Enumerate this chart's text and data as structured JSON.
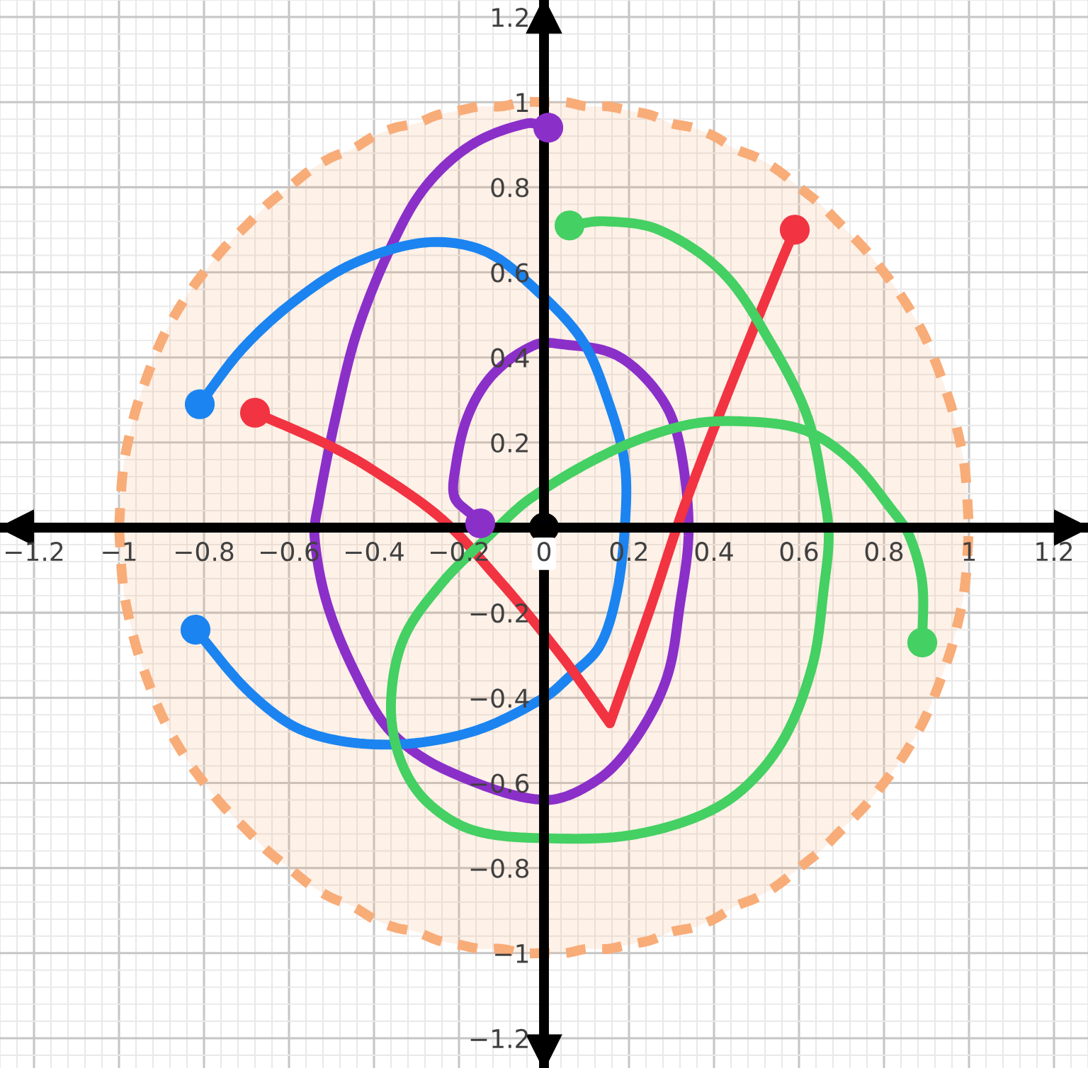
{
  "chart_data": {
    "type": "line",
    "xlim": [
      -1.28,
      1.28
    ],
    "ylim": [
      -1.27,
      1.24
    ],
    "xticks": [
      {
        "value": -1.2,
        "label": "−1.2"
      },
      {
        "value": -1,
        "label": "−1"
      },
      {
        "value": -0.8,
        "label": "−0.8"
      },
      {
        "value": -0.6,
        "label": "−0.6"
      },
      {
        "value": -0.4,
        "label": "−0.4"
      },
      {
        "value": -0.2,
        "label": "−0.2"
      },
      0,
      0.2,
      0.4,
      0.6,
      0.8,
      1,
      1.2
    ],
    "yticks": [
      {
        "value": -1.2,
        "label": "−1.2"
      },
      {
        "value": -1,
        "label": "−1"
      },
      {
        "value": -0.8,
        "label": "−0.8"
      },
      {
        "value": -0.6,
        "label": "−0.6"
      },
      {
        "value": -0.4,
        "label": "−0.4"
      },
      {
        "value": -0.2,
        "label": "−0.2"
      },
      0.2,
      0.4,
      0.6,
      0.8,
      1,
      1.2
    ],
    "grid": true,
    "series": [
      {
        "type": "area",
        "color": "#f8ac78",
        "line_style": "dashed",
        "x": [
          -1,
          -0.99,
          -0.97,
          -0.95,
          -0.9,
          -0.85,
          -0.8,
          -0.75,
          -0.7,
          -0.65,
          -0.6,
          -0.55,
          -0.5,
          -0.45,
          -0.4,
          -0.35,
          -0.3,
          -0.25,
          -0.2,
          -0.15,
          -0.1,
          -0.05,
          0,
          0.05,
          0.1,
          0.15,
          0.2,
          0.25,
          0.3,
          0.35,
          0.4,
          0.45,
          0.5,
          0.55,
          0.6,
          0.65,
          0.7,
          0.75,
          0.8,
          0.85,
          0.9,
          0.95,
          0.97,
          0.99,
          1
        ],
        "values": [
          0,
          0.14,
          0.24,
          0.31,
          0.44,
          0.53,
          0.6,
          0.66,
          0.71,
          0.76,
          0.8,
          0.84,
          0.87,
          0.89,
          0.92,
          0.94,
          0.95,
          0.97,
          0.98,
          0.99,
          0.99,
          1,
          1,
          1,
          0.99,
          0.99,
          0.98,
          0.97,
          0.95,
          0.94,
          0.92,
          0.89,
          0.87,
          0.84,
          0.8,
          0.76,
          0.71,
          0.66,
          0.6,
          0.53,
          0.44,
          0.31,
          0.24,
          0.14,
          0
        ]
      },
      {
        "type": "area",
        "color": "#f8ac78",
        "line_style": "dashed",
        "x": [
          -1,
          -0.99,
          -0.97,
          -0.95,
          -0.9,
          -0.85,
          -0.8,
          -0.75,
          -0.7,
          -0.65,
          -0.6,
          -0.55,
          -0.5,
          -0.45,
          -0.4,
          -0.35,
          -0.3,
          -0.25,
          -0.2,
          -0.15,
          -0.1,
          -0.05,
          0,
          0.05,
          0.1,
          0.15,
          0.2,
          0.25,
          0.3,
          0.35,
          0.4,
          0.45,
          0.5,
          0.55,
          0.6,
          0.65,
          0.7,
          0.75,
          0.8,
          0.85,
          0.9,
          0.95,
          0.97,
          0.99,
          1
        ],
        "values": [
          0,
          -0.14,
          -0.24,
          -0.31,
          -0.44,
          -0.53,
          -0.6,
          -0.66,
          -0.71,
          -0.76,
          -0.8,
          -0.84,
          -0.87,
          -0.89,
          -0.92,
          -0.94,
          -0.95,
          -0.97,
          -0.98,
          -0.99,
          -0.99,
          -1,
          -1,
          -1,
          -0.99,
          -0.99,
          -0.98,
          -0.97,
          -0.95,
          -0.94,
          -0.92,
          -0.89,
          -0.87,
          -0.84,
          -0.8,
          -0.76,
          -0.71,
          -0.66,
          -0.6,
          -0.53,
          -0.44,
          -0.31,
          -0.24,
          -0.14,
          0
        ]
      },
      {
        "color": "#8b2fc9",
        "x": [
          0.01,
          -0.04,
          -0.17,
          -0.28,
          -0.36,
          -0.44,
          -0.49,
          -0.53,
          -0.54,
          -0.51,
          -0.44,
          -0.36,
          -0.23,
          0,
          0.13,
          0.22,
          0.29,
          0.32,
          0.34,
          0.33,
          0.3,
          0.24,
          0.16,
          0.05,
          -0.02,
          -0.12,
          -0.18,
          -0.21,
          -0.21,
          -0.17,
          -0.15
        ],
        "values": [
          0.94,
          0.95,
          0.9,
          0.8,
          0.66,
          0.46,
          0.26,
          0.06,
          -0.02,
          -0.18,
          -0.35,
          -0.48,
          -0.57,
          -0.64,
          -0.59,
          -0.49,
          -0.35,
          -0.18,
          -0.02,
          0.13,
          0.26,
          0.35,
          0.41,
          0.43,
          0.43,
          0.36,
          0.26,
          0.13,
          0.07,
          0.03,
          0.01
        ]
      },
      {
        "color": "#1b84f0",
        "x": [
          -0.81,
          -0.71,
          -0.59,
          -0.45,
          -0.28,
          -0.14,
          -0.02,
          0.09,
          0.15,
          0.19,
          0.19,
          0.17,
          0.13,
          0.06,
          0,
          -0.17,
          -0.37,
          -0.56,
          -0.69,
          -0.82
        ],
        "values": [
          0.29,
          0.42,
          0.53,
          0.62,
          0.67,
          0.65,
          0.56,
          0.44,
          0.3,
          0.15,
          0,
          -0.16,
          -0.28,
          -0.35,
          -0.4,
          -0.48,
          -0.51,
          -0.48,
          -0.39,
          -0.24
        ]
      },
      {
        "color": "#f23341",
        "x": [
          -0.68,
          -0.52,
          -0.41,
          -0.24,
          -0.1,
          0,
          0.07,
          0.155,
          0.25,
          0.33,
          0.45,
          0.56,
          0.59
        ],
        "values": [
          0.27,
          0.2,
          0.14,
          0.02,
          -0.13,
          -0.25,
          -0.34,
          -0.46,
          -0.19,
          0.05,
          0.36,
          0.63,
          0.7
        ]
      },
      {
        "color": "#44d062",
        "x": [
          0.06,
          0.14,
          0.27,
          0.42,
          0.53,
          0.62,
          0.66,
          0.67,
          0.66,
          0.63,
          0.55,
          0.42,
          0.22,
          0,
          -0.17,
          -0.28,
          -0.34,
          -0.36,
          -0.33,
          -0.24,
          -0.13,
          -0.03,
          0.16,
          0.33,
          0.46,
          0.61,
          0.72,
          0.82,
          0.86,
          0.89,
          0.89
        ],
        "values": [
          0.71,
          0.72,
          0.7,
          0.6,
          0.44,
          0.26,
          0.07,
          -0.02,
          -0.13,
          -0.33,
          -0.52,
          -0.65,
          -0.72,
          -0.73,
          -0.71,
          -0.64,
          -0.54,
          -0.41,
          -0.26,
          -0.13,
          -0.02,
          0.07,
          0.18,
          0.24,
          0.25,
          0.23,
          0.16,
          0.04,
          -0.02,
          -0.13,
          -0.27
        ]
      },
      {
        "type": "scatter",
        "color": "#8b2fc9",
        "x": [
          0.01,
          -0.15
        ],
        "values": [
          0.94,
          0.01
        ]
      },
      {
        "type": "scatter",
        "color": "#1b84f0",
        "x": [
          -0.81,
          -0.82
        ],
        "values": [
          0.29,
          -0.24
        ]
      },
      {
        "type": "scatter",
        "color": "#f23341",
        "x": [
          -0.68,
          0.59
        ],
        "values": [
          0.27,
          0.7
        ]
      },
      {
        "type": "scatter",
        "color": "#44d062",
        "x": [
          0.06,
          0.89
        ],
        "values": [
          0.71,
          -0.27
        ]
      },
      {
        "type": "scatter",
        "color": "#000000",
        "x": [
          0
        ],
        "values": [
          0
        ]
      }
    ]
  }
}
